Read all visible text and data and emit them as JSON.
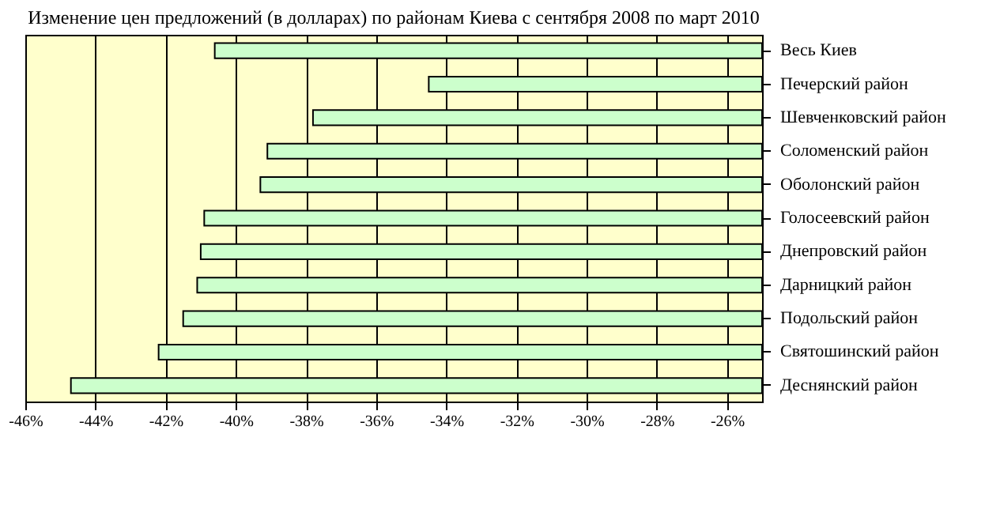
{
  "chart_data": {
    "type": "bar",
    "orientation": "horizontal",
    "title": "Изменение цен предложений (в долларах) по районам Киева с сентября 2008 по март 2010",
    "categories": [
      "Весь Киев",
      "Печерский район",
      "Шевченковский район",
      "Соломенский район",
      "Оболонский район",
      "Голосеевский район",
      "Днепровский район",
      "Дарницкий район",
      "Подольский район",
      "Святошинский район",
      "Деснянский район"
    ],
    "values": [
      -40.6,
      -34.5,
      -37.8,
      -39.1,
      -39.3,
      -40.9,
      -41.0,
      -41.1,
      -41.5,
      -42.2,
      -44.7
    ],
    "color": "#ccffcc",
    "xlim": [
      -46,
      -25
    ],
    "xticks": [
      {
        "value": -46,
        "label": "-46%"
      },
      {
        "value": -44,
        "label": "-44%"
      },
      {
        "value": -42,
        "label": "-42%"
      },
      {
        "value": -40,
        "label": "-40%"
      },
      {
        "value": -38,
        "label": "-38%"
      },
      {
        "value": -36,
        "label": "-36%"
      },
      {
        "value": -34,
        "label": "-34%"
      },
      {
        "value": -32,
        "label": "-32%"
      },
      {
        "value": -30,
        "label": "-30%"
      },
      {
        "value": -28,
        "label": "-28%"
      },
      {
        "value": -26,
        "label": "-26%"
      }
    ],
    "grid": "x"
  }
}
